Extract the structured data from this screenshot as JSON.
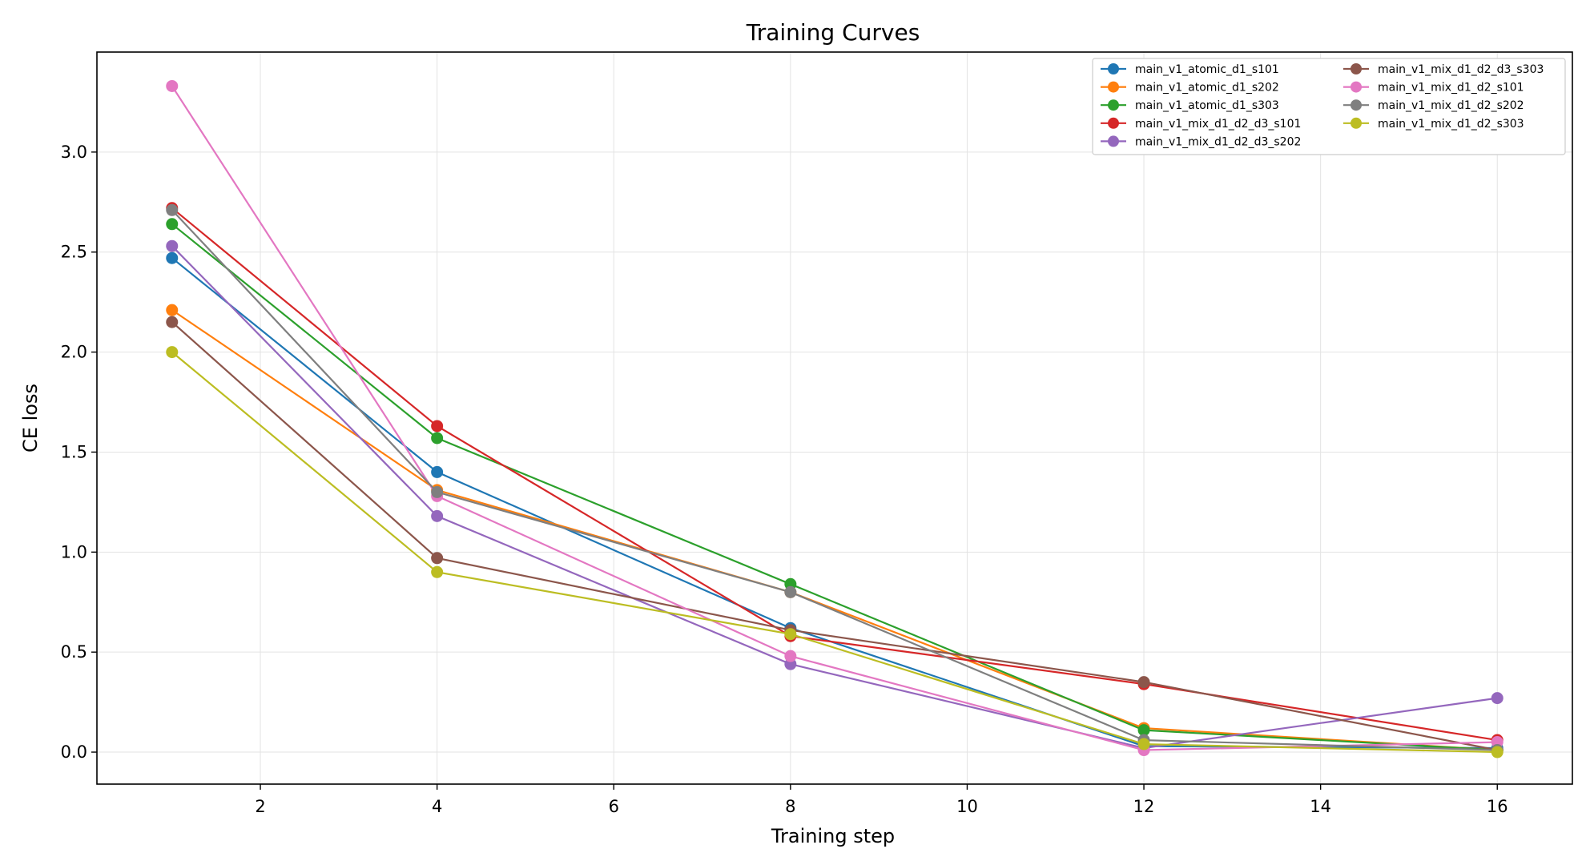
{
  "chart_data": {
    "type": "line",
    "title": "Training Curves",
    "xlabel": "Training step",
    "ylabel": "CE loss",
    "xlim": [
      0.15,
      16.85
    ],
    "ylim": [
      -0.16,
      3.5
    ],
    "xticks": [
      2,
      4,
      6,
      8,
      10,
      12,
      14,
      16
    ],
    "yticks": [
      0.0,
      0.5,
      1.0,
      1.5,
      2.0,
      2.5,
      3.0
    ],
    "grid": true,
    "legend_position": "top-right",
    "x": [
      1,
      4,
      8,
      12,
      16
    ],
    "series": [
      {
        "name": "main_v1_atomic_d1_s101",
        "color": "#1f77b4",
        "values": [
          2.47,
          1.4,
          0.62,
          0.03,
          0.02
        ]
      },
      {
        "name": "main_v1_atomic_d1_s202",
        "color": "#ff7f0e",
        "values": [
          2.21,
          1.31,
          0.8,
          0.12,
          0.01
        ]
      },
      {
        "name": "main_v1_atomic_d1_s303",
        "color": "#2ca02c",
        "values": [
          2.64,
          1.57,
          0.84,
          0.11,
          0.01
        ]
      },
      {
        "name": "main_v1_mix_d1_d2_d3_s101",
        "color": "#d62728",
        "values": [
          2.72,
          1.63,
          0.58,
          0.34,
          0.06
        ]
      },
      {
        "name": "main_v1_mix_d1_d2_d3_s202",
        "color": "#9467bd",
        "values": [
          2.53,
          1.18,
          0.44,
          0.02,
          0.27
        ]
      },
      {
        "name": "main_v1_mix_d1_d2_d3_s303",
        "color": "#8c564b",
        "values": [
          2.15,
          0.97,
          0.61,
          0.35,
          0.01
        ]
      },
      {
        "name": "main_v1_mix_d1_d2_s101",
        "color": "#e377c2",
        "values": [
          3.33,
          1.28,
          0.48,
          0.01,
          0.05
        ]
      },
      {
        "name": "main_v1_mix_d1_d2_s202",
        "color": "#7f7f7f",
        "values": [
          2.71,
          1.3,
          0.8,
          0.06,
          0.01
        ]
      },
      {
        "name": "main_v1_mix_d1_d2_s303",
        "color": "#bcbd22",
        "values": [
          2.0,
          0.9,
          0.59,
          0.04,
          0.0
        ]
      }
    ]
  }
}
